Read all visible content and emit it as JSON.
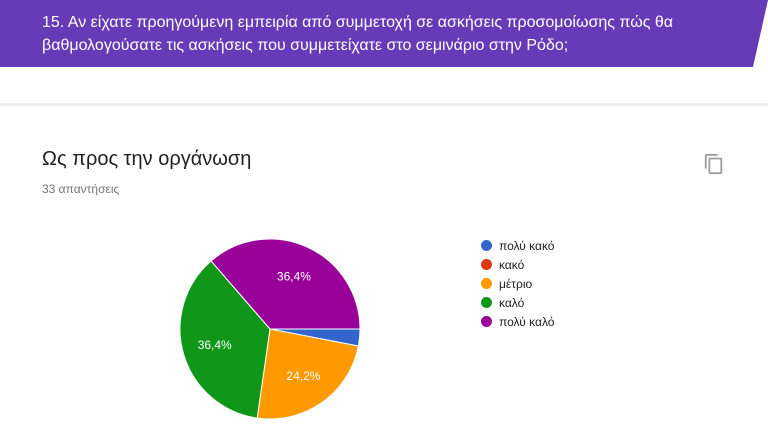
{
  "question": {
    "text": "15. Αν είχατε προηγούμενη εμπειρία από συμμετοχή σε ασκήσεις προσομοίωσης πώς θα βαθμολογούσατε τις ασκήσεις που συμμετείχατε στο σεμινάριο στην Ρόδο;",
    "banner_color": "#673ab7"
  },
  "card": {
    "title": "Ως προς την οργάνωση",
    "response_count": "33 απαντήσεις",
    "copy_icon": "copy-icon"
  },
  "chart_data": {
    "type": "pie",
    "categories": [
      "πολύ κακό",
      "κακό",
      "μέτριο",
      "καλό",
      "πολύ καλό"
    ],
    "values": [
      1,
      0,
      8,
      12,
      12
    ],
    "percent_labels": [
      "",
      "",
      "24,2%",
      "36,4%",
      "36,4%"
    ],
    "colors": [
      "#3366cc",
      "#dc3912",
      "#ff9900",
      "#109618",
      "#990099"
    ],
    "legend_position": "right"
  }
}
